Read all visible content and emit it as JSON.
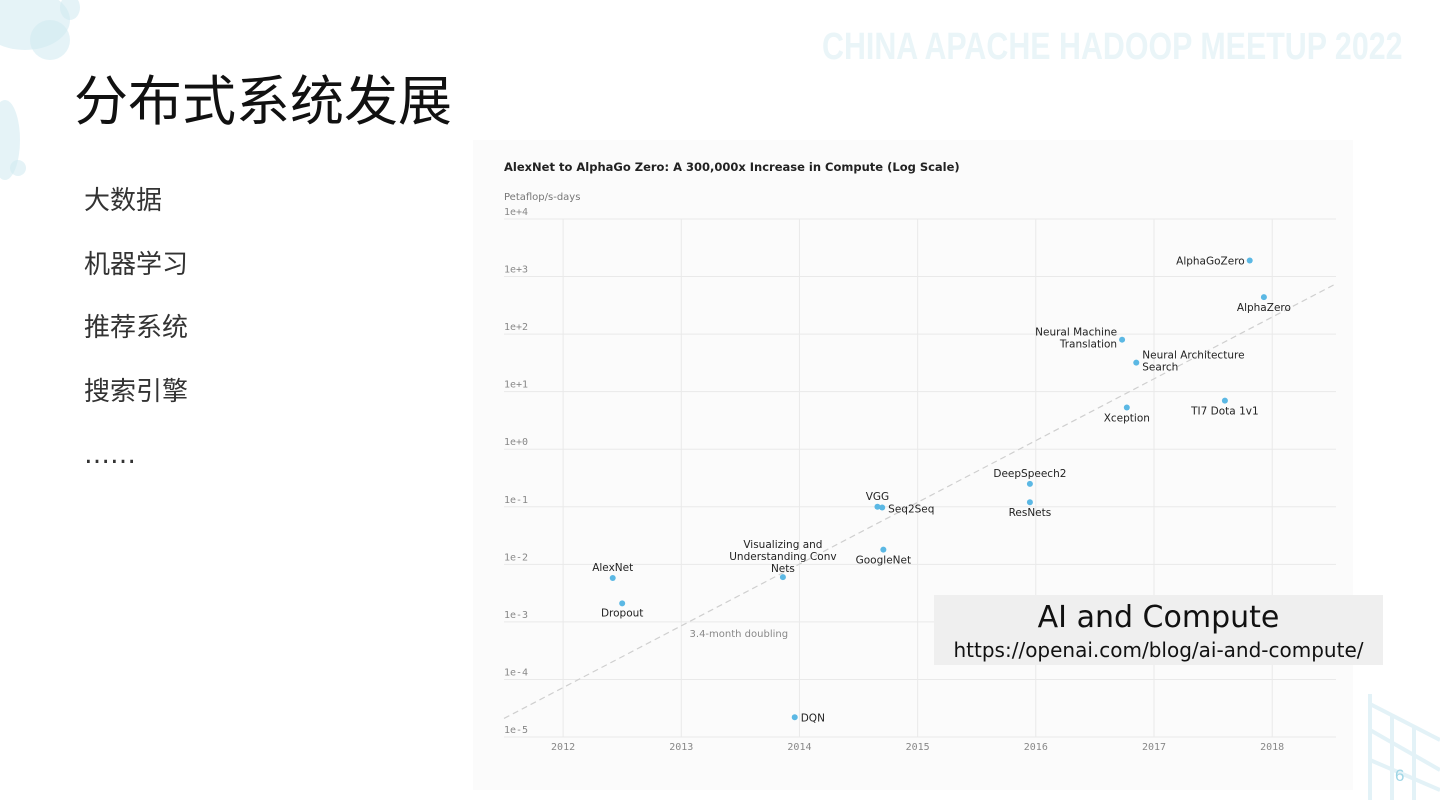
{
  "slide": {
    "header_watermark": "CHINA APACHE HADOOP MEETUP 2022",
    "title": "分布式系统发展",
    "bullets": [
      "大数据",
      "机器学习",
      "推荐系统",
      "搜索引擎",
      "……"
    ],
    "caption_title": "AI and Compute",
    "caption_url": "https://openai.com/blog/ai-and-compute/",
    "page_number": "6",
    "accent_color": "#5bb8e4"
  },
  "chart_data": {
    "type": "scatter",
    "title": "AlexNet to AlphaGo Zero: A 300,000x Increase in Compute (Log Scale)",
    "ylabel": "Petaflop/s-days",
    "xlabel": "",
    "y_scale": "log",
    "ylim": [
      1e-05,
      10000
    ],
    "xlim": [
      2011.5,
      2018.54
    ],
    "y_ticks": [
      "1e+4",
      "1e+3",
      "1e+2",
      "1e+1",
      "1e+0",
      "1e-1",
      "1e-2",
      "1e-3",
      "1e-4",
      "1e-5"
    ],
    "x_ticks": [
      "2012",
      "2013",
      "2014",
      "2015",
      "2016",
      "2017",
      "2018"
    ],
    "grid": true,
    "point_color": "#5bb8e4",
    "points": [
      {
        "label": "AlexNet",
        "x": 2012.42,
        "y": 0.0058
      },
      {
        "label": "Dropout",
        "x": 2012.5,
        "y": 0.0021
      },
      {
        "label": "Visualizing and\nUnderstanding Conv\nNets",
        "x": 2013.86,
        "y": 0.006
      },
      {
        "label": "DQN",
        "x": 2013.96,
        "y": 2.2e-05
      },
      {
        "label": "GoogleNet",
        "x": 2014.71,
        "y": 0.018
      },
      {
        "label": "VGG",
        "x": 2014.66,
        "y": 0.1
      },
      {
        "label": "Seq2Seq",
        "x": 2014.7,
        "y": 0.097
      },
      {
        "label": "DeepSpeech2",
        "x": 2015.95,
        "y": 0.25
      },
      {
        "label": "ResNets",
        "x": 2015.95,
        "y": 0.12
      },
      {
        "label": "Xception",
        "x": 2016.77,
        "y": 5.3
      },
      {
        "label": "Neural Machine\nTranslation",
        "x": 2016.73,
        "y": 80
      },
      {
        "label": "Neural Architecture\nSearch",
        "x": 2016.85,
        "y": 32
      },
      {
        "label": "TI7 Dota 1v1",
        "x": 2017.6,
        "y": 7
      },
      {
        "label": "AlphaGoZero",
        "x": 2017.81,
        "y": 1900
      },
      {
        "label": "AlphaZero",
        "x": 2017.93,
        "y": 440
      }
    ],
    "trend": {
      "label": "3.4-month doubling",
      "from": [
        2011.5,
        2.1e-05
      ],
      "to": [
        2018.54,
        750
      ]
    }
  }
}
